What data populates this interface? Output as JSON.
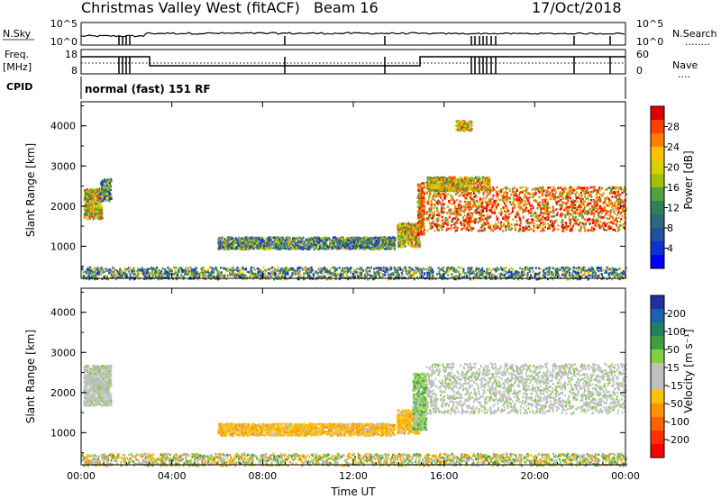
{
  "header": {
    "title": "Christmas Valley West (fitACF)",
    "beam": "Beam 16",
    "date": "17/Oct/2018"
  },
  "nsky_panel": {
    "left_label": "N.Sky",
    "left_ticks": [
      "10^5",
      "10^0"
    ],
    "right_ticks": [
      "10^5",
      "10^0"
    ],
    "right_label": "N.Search",
    "right_dots": "........"
  },
  "freq_panel": {
    "left_label_1": "Freq.",
    "left_label_2": "[MHz]",
    "left_ticks": [
      "18",
      "8"
    ],
    "right_ticks": [
      "60",
      "0"
    ],
    "right_label": "Nave",
    "right_dots": "....",
    "cpid_label": "CPID",
    "cpid_text": "normal (fast) 151 RF"
  },
  "chart_data": [
    {
      "type": "heatmap",
      "name": "Power",
      "ylabel": "Slant Range [km]",
      "yticks": [
        "1000",
        "2000",
        "3000",
        "4000"
      ],
      "ylim": [
        200,
        4600
      ],
      "xlim": [
        0,
        24
      ],
      "xticks": [
        "00:00",
        "04:00",
        "08:00",
        "12:00",
        "16:00",
        "20:00",
        "00:00"
      ],
      "colorbar": {
        "label": "Power [dB]",
        "ticks": [
          "28",
          "24",
          "20",
          "16",
          "12",
          "8",
          "4"
        ],
        "colors": [
          "#e00000",
          "#ff4000",
          "#ff8000",
          "#ffc000",
          "#d8d000",
          "#a0c000",
          "#50a040",
          "#30805a",
          "#306880",
          "#2050a0",
          "#1030d0",
          "#0000ff"
        ]
      },
      "regions": [
        {
          "t0": 0.1,
          "t1": 0.9,
          "r0": 1700,
          "r1": 2450,
          "level": "mid"
        },
        {
          "t0": 0.8,
          "t1": 1.3,
          "r0": 2150,
          "r1": 2700,
          "level": "low"
        },
        {
          "t0": 6.0,
          "t1": 13.8,
          "r0": 950,
          "r1": 1250,
          "level": "low"
        },
        {
          "t0": 13.9,
          "t1": 14.9,
          "r0": 1000,
          "r1": 1600,
          "level": "mid"
        },
        {
          "t0": 14.8,
          "t1": 15.1,
          "r0": 1300,
          "r1": 2600,
          "level": "high"
        },
        {
          "t0": 15.2,
          "t1": 24.0,
          "r0": 1400,
          "r1": 2500,
          "level": "high"
        },
        {
          "t0": 15.2,
          "t1": 18.0,
          "r0": 2400,
          "r1": 2750,
          "level": "mid"
        },
        {
          "t0": 16.5,
          "t1": 17.2,
          "r0": 3900,
          "r1": 4150,
          "level": "mid"
        },
        {
          "t0": 0.0,
          "t1": 24.0,
          "r0": 200,
          "r1": 500,
          "level": "low"
        }
      ]
    },
    {
      "type": "heatmap",
      "name": "Velocity",
      "ylabel": "Slant Range [km]",
      "yticks": [
        "1000",
        "2000",
        "3000",
        "4000"
      ],
      "ylim": [
        200,
        4600
      ],
      "xlim": [
        0,
        24
      ],
      "xlabel": "Time UT",
      "xticks": [
        "00:00",
        "04:00",
        "08:00",
        "12:00",
        "16:00",
        "20:00",
        "00:00"
      ],
      "colorbar": {
        "label": "Velocity [m s⁻¹]",
        "ticks": [
          "200",
          "100",
          "50",
          "15",
          "-15",
          "-50",
          "-100",
          "-200"
        ],
        "colors": [
          "#2030a0",
          "#2060b0",
          "#208060",
          "#40a040",
          "#80d040",
          "#c0c0c0",
          "#c0c0c0",
          "#ffc000",
          "#ff9000",
          "#ff6000",
          "#ff3000",
          "#ff0000"
        ]
      },
      "regions": [
        {
          "t0": 0.1,
          "t1": 1.3,
          "r0": 1700,
          "r1": 2700,
          "level": "ground"
        },
        {
          "t0": 6.0,
          "t1": 13.8,
          "r0": 950,
          "r1": 1250,
          "level": "neg"
        },
        {
          "t0": 13.9,
          "t1": 14.9,
          "r0": 1000,
          "r1": 1600,
          "level": "neg"
        },
        {
          "t0": 14.6,
          "t1": 15.2,
          "r0": 1100,
          "r1": 2500,
          "level": "pos"
        },
        {
          "t0": 15.2,
          "t1": 24.0,
          "r0": 1500,
          "r1": 2750,
          "level": "ground"
        },
        {
          "t0": 0.0,
          "t1": 24.0,
          "r0": 200,
          "r1": 500,
          "level": "mixed"
        }
      ]
    }
  ]
}
